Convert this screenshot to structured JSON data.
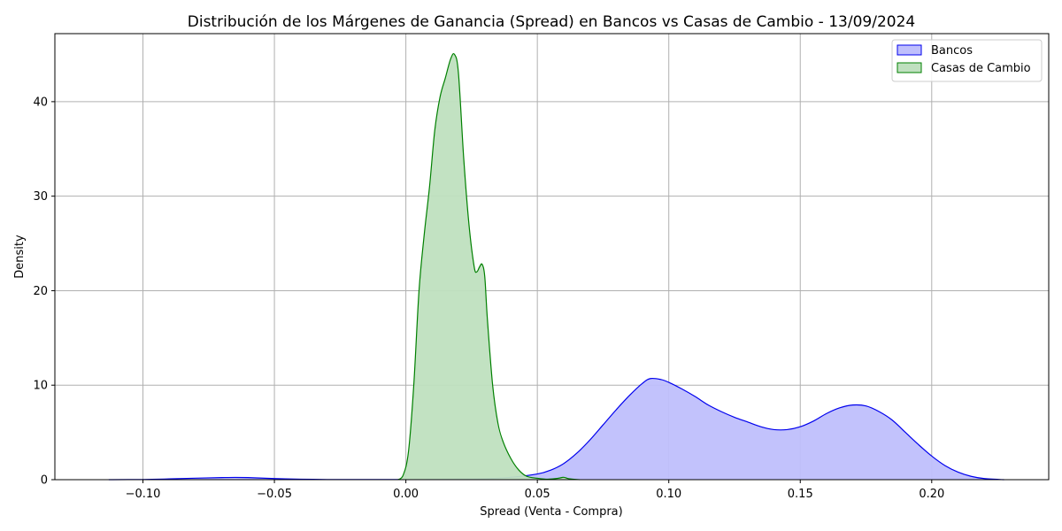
{
  "chart_data": {
    "type": "area",
    "title": "Distribución de los Márgenes de Ganancia (Spread) en Bancos vs Casas de Cambio - 13/09/2024",
    "xlabel": "Spread (Venta - Compra)",
    "ylabel": "Density",
    "xlim": [
      -0.1335,
      0.2445
    ],
    "ylim": [
      0,
      47.2
    ],
    "x_ticks": [
      -0.1,
      -0.05,
      0.0,
      0.05,
      0.1,
      0.15,
      0.2
    ],
    "x_tick_labels": [
      "−0.10",
      "−0.05",
      "0.00",
      "0.05",
      "0.10",
      "0.15",
      "0.20"
    ],
    "y_ticks": [
      0,
      10,
      20,
      30,
      40
    ],
    "y_tick_labels": [
      "0",
      "10",
      "20",
      "30",
      "40"
    ],
    "grid": true,
    "legend_position": "top-right",
    "series": [
      {
        "name": "Bancos",
        "line_color": "#0000ee",
        "fill_color": "#bfbffc",
        "x": [
          -0.113,
          -0.1,
          -0.09,
          -0.08,
          -0.07,
          -0.065,
          -0.06,
          -0.05,
          -0.04,
          -0.03,
          -0.02,
          -0.01,
          0.0,
          0.01,
          0.02,
          0.03,
          0.04,
          0.05,
          0.055,
          0.06,
          0.065,
          0.07,
          0.075,
          0.08,
          0.085,
          0.09,
          0.093,
          0.097,
          0.1,
          0.105,
          0.11,
          0.115,
          0.12,
          0.125,
          0.13,
          0.135,
          0.14,
          0.145,
          0.15,
          0.155,
          0.16,
          0.165,
          0.17,
          0.175,
          0.18,
          0.185,
          0.19,
          0.195,
          0.2,
          0.205,
          0.21,
          0.215,
          0.22,
          0.2275
        ],
        "y": [
          0.0,
          0.02,
          0.08,
          0.16,
          0.22,
          0.24,
          0.22,
          0.12,
          0.05,
          0.02,
          0.01,
          0.01,
          0.02,
          0.04,
          0.06,
          0.1,
          0.25,
          0.6,
          1.0,
          1.7,
          2.8,
          4.2,
          5.8,
          7.4,
          8.9,
          10.2,
          10.7,
          10.6,
          10.3,
          9.6,
          8.8,
          7.9,
          7.2,
          6.6,
          6.1,
          5.6,
          5.3,
          5.3,
          5.6,
          6.2,
          7.0,
          7.6,
          7.9,
          7.8,
          7.2,
          6.3,
          5.0,
          3.7,
          2.5,
          1.5,
          0.8,
          0.35,
          0.12,
          0.0
        ]
      },
      {
        "name": "Casas de Cambio",
        "line_color": "#008000",
        "fill_color": "#bfe0bf",
        "x": [
          -0.003,
          -0.001,
          0.001,
          0.003,
          0.005,
          0.007,
          0.009,
          0.011,
          0.013,
          0.015,
          0.017,
          0.0185,
          0.02,
          0.022,
          0.024,
          0.026,
          0.027,
          0.028,
          0.029,
          0.03,
          0.031,
          0.033,
          0.035,
          0.037,
          0.04,
          0.043,
          0.046,
          0.05,
          0.054,
          0.058,
          0.06,
          0.062,
          0.066
        ],
        "y": [
          0.0,
          0.5,
          3.0,
          10.0,
          20.0,
          26.0,
          31.0,
          37.0,
          40.5,
          42.5,
          44.5,
          45.0,
          43.0,
          34.0,
          27.0,
          22.5,
          22.0,
          22.5,
          22.8,
          21.5,
          17.0,
          10.0,
          6.0,
          4.0,
          2.2,
          1.0,
          0.35,
          0.15,
          0.05,
          0.15,
          0.25,
          0.1,
          0.0
        ]
      }
    ]
  }
}
